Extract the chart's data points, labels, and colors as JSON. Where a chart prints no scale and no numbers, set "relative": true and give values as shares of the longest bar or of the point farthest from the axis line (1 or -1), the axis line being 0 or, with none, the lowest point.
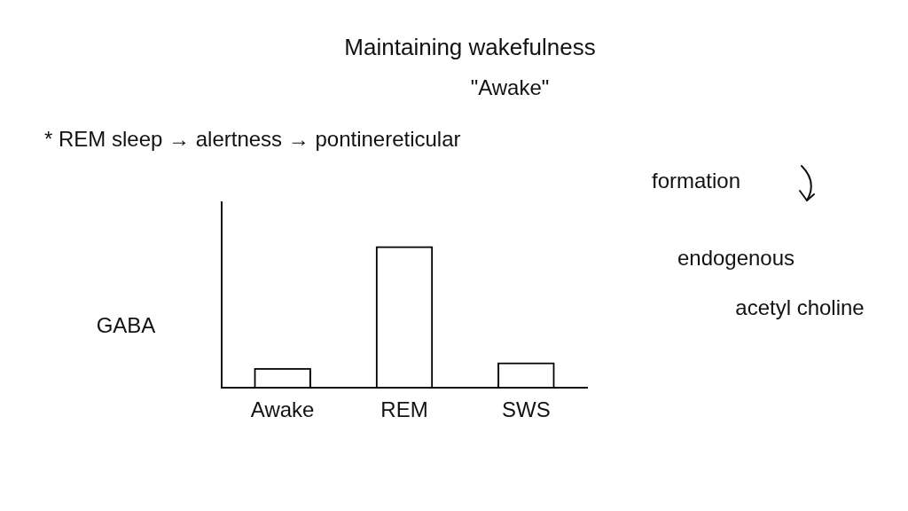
{
  "chart_data": {
    "type": "bar",
    "title": "Maintaining wakefulness",
    "subtitle": "\"Awake\"",
    "ylabel": "GABA",
    "annotations": [
      "* REM sleep → alertness → pontinereticular",
      "formation",
      "endogenous",
      "acetyl choline"
    ],
    "categories": [
      "Awake",
      "REM",
      "SWS"
    ],
    "values": [
      0.14,
      1,
      0.18
    ],
    "color": "#000000",
    "relative": true
  }
}
